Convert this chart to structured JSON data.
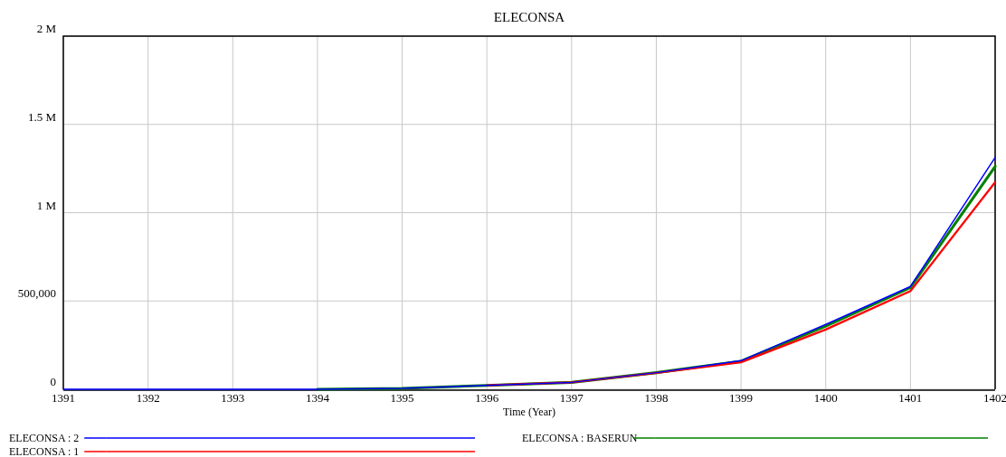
{
  "chart_data": {
    "type": "line",
    "title": "ELECONSA",
    "xlabel": "Time (Year)",
    "x": [
      1391,
      1392,
      1393,
      1394,
      1395,
      1396,
      1397,
      1398,
      1399,
      1400,
      1401,
      1402
    ],
    "series": [
      {
        "name": "ELECONSA : 2",
        "color": "#0000ff",
        "values": [
          0,
          0,
          0,
          0,
          5000,
          22000,
          39000,
          94000,
          162000,
          367000,
          582000,
          1313000
        ]
      },
      {
        "name": "ELECONSA : 1",
        "color": "#ff0000",
        "values": [
          null,
          null,
          null,
          null,
          null,
          22000,
          39000,
          93000,
          153000,
          338000,
          556000,
          1173000
        ]
      },
      {
        "name": "ELECONSA : BASERUN",
        "color": "#008000",
        "values": [
          null,
          null,
          null,
          0,
          5000,
          22000,
          39000,
          94000,
          159000,
          358000,
          576000,
          1262000
        ]
      }
    ],
    "xlim": [
      1391,
      1402
    ],
    "xticks": [
      1391,
      1392,
      1393,
      1394,
      1395,
      1396,
      1397,
      1398,
      1399,
      1400,
      1401,
      1402
    ],
    "ylim": [
      0,
      2000000
    ],
    "yticks": [
      0,
      {
        "value": 500000,
        "label": "500,000"
      },
      {
        "value": 1000000,
        "label": "1 M"
      },
      {
        "value": 1500000,
        "label": "1.5 M"
      },
      {
        "value": 2000000,
        "label": "2 M"
      }
    ],
    "grid": true,
    "legend": "bottom",
    "marker": "none",
    "line_style": "solid"
  }
}
